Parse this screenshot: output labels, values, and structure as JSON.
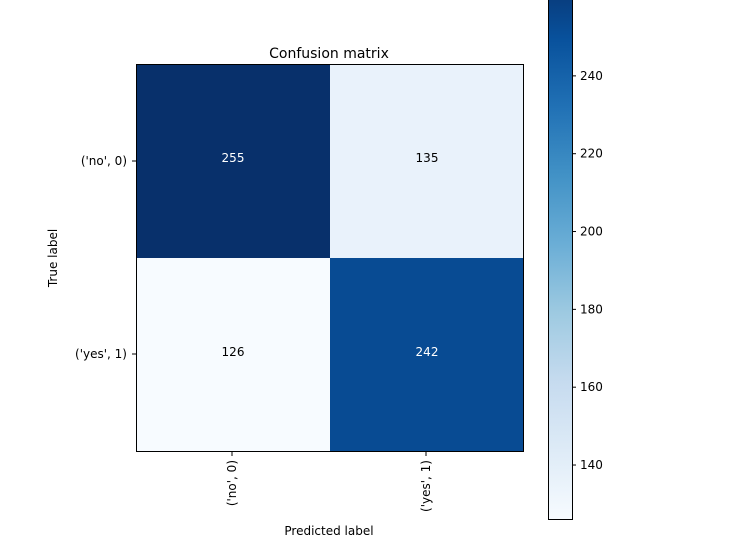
{
  "chart_data": {
    "type": "heatmap",
    "title": "Confusion matrix",
    "xlabel": "Predicted label",
    "ylabel": "True label",
    "x_categories": [
      "('no', 0)",
      "('yes', 1)"
    ],
    "y_categories": [
      "('no', 0)",
      "('yes', 1)"
    ],
    "values": [
      [
        255,
        135
      ],
      [
        126,
        242
      ]
    ],
    "value_labels": [
      [
        "255",
        "135"
      ],
      [
        "126",
        "242"
      ]
    ],
    "colormap": "Blues",
    "colorbar": {
      "range": [
        126,
        255
      ],
      "ticks": [
        140,
        160,
        180,
        200,
        220,
        240
      ],
      "tick_labels": [
        "140",
        "160",
        "180",
        "200",
        "220",
        "240"
      ]
    },
    "text_colors": {
      "dark_cell": "#ffffff",
      "light_cell": "#000000"
    }
  }
}
